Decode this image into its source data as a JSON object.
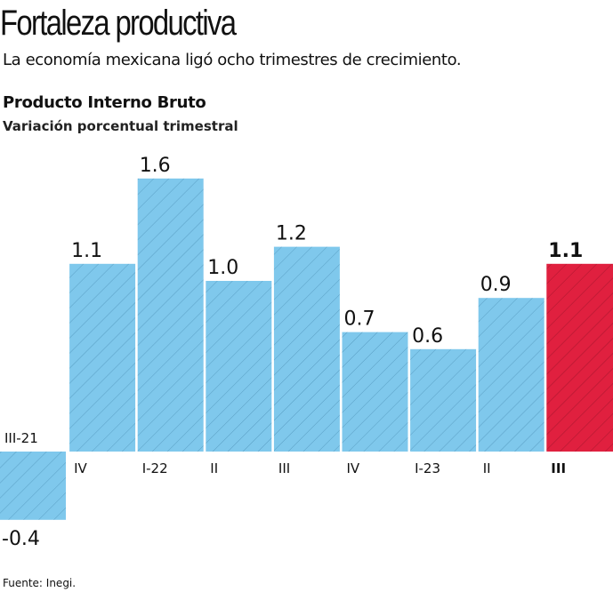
{
  "header": {
    "title": "Fortaleza productiva",
    "subtitle": "La economía mexicana ligó ocho trimestres de crecimiento."
  },
  "chart_data": {
    "type": "bar",
    "title": "Producto Interno Bruto",
    "subtitle": "Variación porcentual trimestral",
    "categories": [
      "III-21",
      "IV",
      "I-22",
      "II",
      "III",
      "IV",
      "I-23",
      "II",
      "III"
    ],
    "values": [
      -0.4,
      1.1,
      1.6,
      1.0,
      1.2,
      0.7,
      0.6,
      0.9,
      1.1
    ],
    "value_labels": [
      "-0.4",
      "1.1",
      "1.6",
      "1.0",
      "1.2",
      "0.7",
      "0.6",
      "0.9",
      "1.1"
    ],
    "highlight_index": 8,
    "colors": {
      "bar": "#7fc8ec",
      "bar_hatch": "#5a9fc4",
      "highlight": "#e0203f",
      "highlight_hatch": "#a8162e"
    },
    "grid": false
  },
  "footer": {
    "source": "Fuente: Inegi."
  }
}
